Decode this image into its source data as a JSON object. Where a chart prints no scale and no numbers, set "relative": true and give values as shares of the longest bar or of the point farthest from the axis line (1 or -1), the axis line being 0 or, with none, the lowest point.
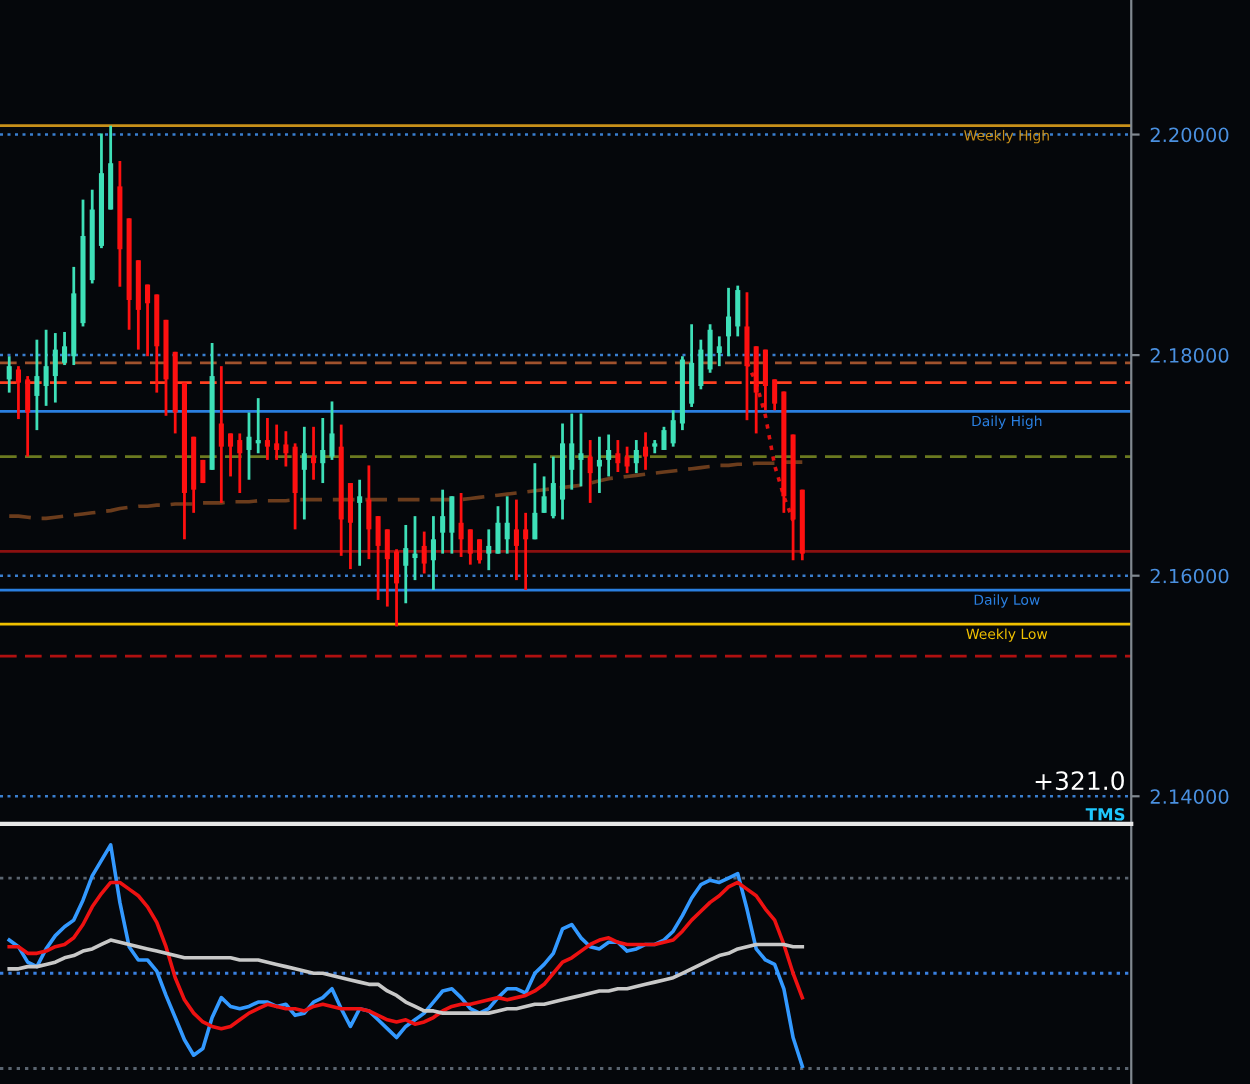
{
  "chart_data": [
    {
      "type": "candlestick",
      "categories": [
        null,
        null,
        null,
        null,
        null,
        null,
        null,
        null,
        null,
        null,
        null,
        null,
        null,
        null,
        null,
        null,
        null,
        null,
        null,
        null,
        null,
        null,
        null,
        null,
        null,
        null,
        null,
        null,
        null,
        null,
        null,
        null,
        null,
        null,
        null,
        null,
        null,
        null,
        null,
        null,
        null,
        null,
        null,
        null,
        null,
        null,
        null,
        null,
        null,
        null,
        null,
        null,
        null,
        null,
        null,
        null,
        null,
        null,
        null,
        null,
        null,
        null,
        null,
        null,
        null,
        null,
        null,
        null,
        null,
        null,
        null,
        null,
        null,
        null,
        null,
        null,
        null,
        null,
        null,
        null,
        null,
        null,
        null,
        null,
        null,
        null,
        null
      ],
      "ohlc": [
        [
          2.1778,
          2.1799,
          2.1766,
          2.179
        ],
        [
          2.1787,
          2.179,
          2.1742,
          2.1775
        ],
        [
          2.1778,
          2.1781,
          2.1708,
          2.1748
        ],
        [
          2.1763,
          2.1814,
          2.1732,
          2.1781
        ],
        [
          2.1772,
          2.1823,
          2.1754,
          2.179
        ],
        [
          2.1781,
          2.182,
          2.1757,
          2.1805
        ],
        [
          2.1793,
          2.1821,
          2.1791,
          2.1808
        ],
        [
          2.1799,
          2.188,
          2.1791,
          2.1856
        ],
        [
          2.1829,
          2.1941,
          2.1826,
          2.1908
        ],
        [
          2.1868,
          2.195,
          2.1865,
          2.1932
        ],
        [
          2.1899,
          2.2001,
          2.1897,
          2.1965
        ],
        [
          2.1932,
          2.2008,
          2.1932,
          2.1974
        ],
        [
          2.1953,
          2.1976,
          2.1862,
          2.1896
        ],
        [
          2.1924,
          2.1924,
          2.1823,
          2.185
        ],
        [
          2.1886,
          2.1886,
          2.1805,
          2.1841
        ],
        [
          2.1864,
          2.1864,
          2.1799,
          2.1847
        ],
        [
          2.1855,
          2.1855,
          2.1766,
          2.1808
        ],
        [
          2.1832,
          2.1832,
          2.1745,
          2.1778
        ],
        [
          2.1803,
          2.1803,
          2.1729,
          2.1748
        ],
        [
          2.1775,
          2.1775,
          2.1633,
          2.1675
        ],
        [
          2.1726,
          2.1726,
          2.1657,
          2.1678
        ],
        [
          2.1705,
          2.1705,
          2.1684,
          2.1684
        ],
        [
          2.1696,
          2.1811,
          2.1696,
          2.1781
        ],
        [
          2.1738,
          2.179,
          2.1666,
          2.1717
        ],
        [
          2.1729,
          2.1729,
          2.169,
          2.1717
        ],
        [
          2.1723,
          2.1729,
          2.1675,
          2.1711
        ],
        [
          2.1714,
          2.1748,
          2.1687,
          2.1726
        ],
        [
          2.172,
          2.1761,
          2.1711,
          2.1723
        ],
        [
          2.1723,
          2.1743,
          2.1705,
          2.1717
        ],
        [
          2.172,
          2.1737,
          2.1705,
          2.1714
        ],
        [
          2.1719,
          2.1731,
          2.1699,
          2.1711
        ],
        [
          2.1717,
          2.172,
          2.1642,
          2.1675
        ],
        [
          2.1696,
          2.1735,
          2.1651,
          2.1711
        ],
        [
          2.1708,
          2.1735,
          2.1687,
          2.1702
        ],
        [
          2.1702,
          2.1743,
          2.1684,
          2.1714
        ],
        [
          2.1708,
          2.1758,
          2.1705,
          2.1729
        ],
        [
          2.1717,
          2.1737,
          2.1618,
          2.1651
        ],
        [
          2.1684,
          2.1684,
          2.1606,
          2.1648
        ],
        [
          2.1666,
          2.1687,
          2.1609,
          2.1672
        ],
        [
          2.1669,
          2.17,
          2.1615,
          2.1642
        ],
        [
          2.1654,
          2.1654,
          2.1578,
          2.1627
        ],
        [
          2.1642,
          2.1642,
          2.1572,
          2.1615
        ],
        [
          2.1622,
          2.1624,
          2.1554,
          2.1593
        ],
        [
          2.1609,
          2.1646,
          2.1575,
          2.1625
        ],
        [
          2.1616,
          2.1654,
          2.1596,
          2.162
        ],
        [
          2.1627,
          2.164,
          2.1602,
          2.1611
        ],
        [
          2.1614,
          2.1654,
          2.1587,
          2.1633
        ],
        [
          2.1639,
          2.1678,
          2.162,
          2.1654
        ],
        [
          2.1639,
          2.1672,
          2.162,
          2.1672
        ],
        [
          2.1648,
          2.1675,
          2.1617,
          2.1633
        ],
        [
          2.1642,
          2.1642,
          2.161,
          2.162
        ],
        [
          2.1633,
          2.1633,
          2.1611,
          2.1614
        ],
        [
          2.162,
          2.1642,
          2.1605,
          2.1627
        ],
        [
          2.162,
          2.1663,
          2.162,
          2.1648
        ],
        [
          2.1633,
          2.1672,
          2.162,
          2.1648
        ],
        [
          2.1642,
          2.1669,
          2.1596,
          2.1627
        ],
        [
          2.1642,
          2.1657,
          2.1587,
          2.1633
        ],
        [
          2.1633,
          2.1702,
          2.1633,
          2.1657
        ],
        [
          2.1657,
          2.169,
          2.1657,
          2.1672
        ],
        [
          2.1654,
          2.1708,
          2.1652,
          2.1684
        ],
        [
          2.1669,
          2.1738,
          2.1651,
          2.172
        ],
        [
          2.1696,
          2.1747,
          2.1678,
          2.172
        ],
        [
          2.1705,
          2.1747,
          2.1681,
          2.1711
        ],
        [
          2.1708,
          2.1723,
          2.1666,
          2.1693
        ],
        [
          2.1699,
          2.1726,
          2.1675,
          2.1705
        ],
        [
          2.1705,
          2.1728,
          2.169,
          2.1714
        ],
        [
          2.1711,
          2.1723,
          2.1694,
          2.1702
        ],
        [
          2.1708,
          2.1717,
          2.1693,
          2.1699
        ],
        [
          2.1702,
          2.1723,
          2.1693,
          2.1714
        ],
        [
          2.1717,
          2.173,
          2.1696,
          2.1708
        ],
        [
          2.1717,
          2.1723,
          2.1711,
          2.172
        ],
        [
          2.1714,
          2.1735,
          2.1714,
          2.1732
        ],
        [
          2.172,
          2.175,
          2.1717,
          2.1741
        ],
        [
          2.1738,
          2.1799,
          2.1732,
          2.1796
        ],
        [
          2.1756,
          2.1828,
          2.1753,
          2.1793
        ],
        [
          2.1772,
          2.1814,
          2.1769,
          2.1805
        ],
        [
          2.1787,
          2.1828,
          2.1784,
          2.1823
        ],
        [
          2.1802,
          2.1817,
          2.179,
          2.1808
        ],
        [
          2.1817,
          2.1861,
          2.1799,
          2.1835
        ],
        [
          2.1826,
          2.1863,
          2.1817,
          2.1859
        ],
        [
          2.1826,
          2.1857,
          2.1741,
          2.179
        ],
        [
          2.1808,
          2.1808,
          2.1729,
          2.1766
        ],
        [
          2.1805,
          2.1805,
          2.175,
          2.1772
        ],
        [
          2.1778,
          2.1778,
          2.175,
          2.1756
        ],
        [
          2.1767,
          2.1767,
          2.1657,
          2.1672
        ],
        [
          2.1728,
          2.1728,
          2.1614,
          2.1651
        ],
        [
          2.1678,
          2.1678,
          2.1614,
          2.162
        ]
      ],
      "series": [
        {
          "type": "line",
          "color": "#6b3c1c",
          "line_style": "dashed",
          "values": [
            2.1654,
            2.1654,
            2.1653,
            2.1652,
            2.1652,
            2.1653,
            2.1654,
            2.1655,
            2.1656,
            2.1657,
            2.1658,
            2.1659,
            2.1661,
            2.1662,
            2.1663,
            2.1663,
            2.1664,
            2.1664,
            2.1665,
            2.1665,
            2.1665,
            2.1666,
            2.1666,
            2.1666,
            2.1667,
            2.1667,
            2.1667,
            2.1668,
            2.1668,
            2.1668,
            2.1668,
            2.1669,
            2.1669,
            2.1669,
            2.1669,
            2.1669,
            2.1669,
            2.1669,
            2.1669,
            2.1669,
            2.1669,
            2.1669,
            2.1669,
            2.1669,
            2.1669,
            2.1669,
            2.1669,
            2.1669,
            2.1669,
            2.1669,
            2.167,
            2.1671,
            2.1672,
            2.1673,
            2.1674,
            2.1675,
            2.1676,
            2.1677,
            2.1678,
            2.1679,
            2.168,
            2.1681,
            2.1682,
            2.1684,
            2.1686,
            2.1688,
            2.1689,
            2.169,
            2.1691,
            2.1692,
            2.1693,
            2.1694,
            2.1695,
            2.1696,
            2.1697,
            2.1698,
            2.1699,
            2.17,
            2.17,
            2.1701,
            2.1701,
            2.1702,
            2.1702,
            2.1702,
            2.1703,
            2.1703,
            2.1703
          ]
        },
        {
          "type": "line",
          "color": "#e01010",
          "line_style": "dotted",
          "values": [
            null,
            null,
            null,
            null,
            null,
            null,
            null,
            null,
            null,
            null,
            null,
            null,
            null,
            null,
            null,
            null,
            null,
            null,
            null,
            null,
            null,
            null,
            null,
            null,
            null,
            null,
            null,
            null,
            null,
            null,
            null,
            null,
            null,
            null,
            null,
            null,
            null,
            null,
            null,
            null,
            null,
            null,
            null,
            null,
            null,
            null,
            null,
            null,
            null,
            null,
            null,
            null,
            null,
            null,
            null,
            null,
            null,
            null,
            null,
            null,
            null,
            null,
            null,
            null,
            null,
            null,
            null,
            null,
            null,
            null,
            null,
            null,
            null,
            null,
            null,
            null,
            null,
            null,
            null,
            null,
            2.1793,
            2.1775,
            2.1745,
            2.17,
            2.1672,
            2.165,
            null
          ]
        }
      ],
      "ref_lines": [
        {
          "axis": "y",
          "value": 2.2008,
          "label": "Weekly High",
          "color": "#c8901a",
          "line_style": "solid"
        },
        {
          "axis": "y",
          "value": 2.1793,
          "color": "#a0522d",
          "line_style": "dashed"
        },
        {
          "axis": "y",
          "value": 2.1775,
          "color": "#ff4020",
          "line_style": "dashed"
        },
        {
          "axis": "y",
          "value": 2.1749,
          "label": "Daily High",
          "color": "#2a7fe0",
          "line_style": "solid"
        },
        {
          "axis": "y",
          "value": 2.1708,
          "color": "#6b7a20",
          "line_style": "dashed"
        },
        {
          "axis": "y",
          "value": 2.1622,
          "color": "#8b1010",
          "line_style": "solid"
        },
        {
          "axis": "y",
          "value": 2.1587,
          "label": "Daily Low",
          "color": "#2a7fe0",
          "line_style": "solid"
        },
        {
          "axis": "y",
          "value": 2.1556,
          "label": "Weekly Low",
          "color": "#f0c000",
          "line_style": "solid"
        },
        {
          "axis": "y",
          "value": 2.1527,
          "color": "#b01010",
          "line_style": "dashed"
        }
      ],
      "ylim": [
        2.1375,
        2.2122
      ],
      "yticks": [
        {
          "value": 2.14,
          "label": "2.14000"
        },
        {
          "value": 2.16,
          "label": "2.16000"
        },
        {
          "value": 2.18,
          "label": "2.18000"
        },
        {
          "value": 2.2,
          "label": "2.20000"
        }
      ],
      "grid": "y",
      "tick_labels": "y",
      "annotations": [
        "+321.0",
        "TMS"
      ]
    },
    {
      "type": "line",
      "relative": true,
      "tick_labels": false,
      "categories": [
        null,
        null,
        null,
        null,
        null,
        null,
        null,
        null,
        null,
        null,
        null,
        null,
        null,
        null,
        null,
        null,
        null,
        null,
        null,
        null,
        null,
        null,
        null,
        null,
        null,
        null,
        null,
        null,
        null,
        null,
        null,
        null,
        null,
        null,
        null,
        null,
        null,
        null,
        null,
        null,
        null,
        null,
        null,
        null,
        null,
        null,
        null,
        null,
        null,
        null,
        null,
        null,
        null,
        null,
        null,
        null,
        null,
        null,
        null,
        null,
        null,
        null,
        null,
        null,
        null,
        null,
        null,
        null,
        null,
        null,
        null,
        null,
        null,
        null,
        null,
        null,
        null,
        null,
        null,
        null,
        null,
        null,
        null,
        null,
        null,
        null,
        null
      ],
      "series": [
        {
          "color": "#3399ff",
          "values": [
            0.57,
            0.54,
            0.47,
            0.45,
            0.53,
            0.59,
            0.63,
            0.66,
            0.75,
            0.86,
            0.93,
            1.0,
            0.74,
            0.54,
            0.48,
            0.48,
            0.43,
            0.32,
            0.22,
            0.12,
            0.05,
            0.08,
            0.22,
            0.31,
            0.27,
            0.26,
            0.27,
            0.29,
            0.29,
            0.27,
            0.28,
            0.23,
            0.24,
            0.29,
            0.31,
            0.35,
            0.26,
            0.18,
            0.26,
            0.25,
            0.21,
            0.17,
            0.13,
            0.18,
            0.21,
            0.24,
            0.29,
            0.34,
            0.35,
            0.31,
            0.26,
            0.24,
            0.26,
            0.31,
            0.35,
            0.35,
            0.33,
            0.42,
            0.46,
            0.51,
            0.62,
            0.64,
            0.58,
            0.54,
            0.53,
            0.56,
            0.56,
            0.52,
            0.53,
            0.55,
            0.55,
            0.57,
            0.61,
            0.68,
            0.76,
            0.82,
            0.84,
            0.83,
            0.85,
            0.87,
            0.71,
            0.53,
            0.48,
            0.46,
            0.35,
            0.13,
            0.0
          ]
        },
        {
          "color": "#ee1111",
          "values": [
            0.54,
            0.54,
            0.51,
            0.51,
            0.52,
            0.54,
            0.55,
            0.58,
            0.64,
            0.72,
            0.78,
            0.83,
            0.83,
            0.8,
            0.77,
            0.72,
            0.65,
            0.54,
            0.4,
            0.3,
            0.24,
            0.2,
            0.18,
            0.17,
            0.18,
            0.21,
            0.24,
            0.26,
            0.28,
            0.27,
            0.26,
            0.26,
            0.25,
            0.27,
            0.28,
            0.27,
            0.26,
            0.26,
            0.26,
            0.25,
            0.23,
            0.21,
            0.2,
            0.21,
            0.19,
            0.2,
            0.22,
            0.25,
            0.27,
            0.28,
            0.28,
            0.29,
            0.3,
            0.31,
            0.3,
            0.31,
            0.32,
            0.34,
            0.37,
            0.42,
            0.47,
            0.49,
            0.52,
            0.55,
            0.57,
            0.58,
            0.56,
            0.55,
            0.55,
            0.55,
            0.55,
            0.56,
            0.57,
            0.61,
            0.66,
            0.7,
            0.74,
            0.77,
            0.81,
            0.83,
            0.8,
            0.77,
            0.71,
            0.66,
            0.55,
            0.42,
            0.31
          ]
        },
        {
          "color": "#c8c8c8",
          "values": [
            0.44,
            0.44,
            0.45,
            0.45,
            0.46,
            0.47,
            0.49,
            0.5,
            0.52,
            0.53,
            0.55,
            0.57,
            0.56,
            0.55,
            0.54,
            0.53,
            0.52,
            0.51,
            0.5,
            0.49,
            0.49,
            0.49,
            0.49,
            0.49,
            0.49,
            0.48,
            0.48,
            0.48,
            0.47,
            0.46,
            0.45,
            0.44,
            0.43,
            0.42,
            0.42,
            0.41,
            0.4,
            0.39,
            0.38,
            0.37,
            0.37,
            0.34,
            0.32,
            0.29,
            0.27,
            0.25,
            0.25,
            0.24,
            0.24,
            0.24,
            0.24,
            0.24,
            0.24,
            0.25,
            0.26,
            0.26,
            0.27,
            0.28,
            0.28,
            0.29,
            0.3,
            0.31,
            0.32,
            0.33,
            0.34,
            0.34,
            0.35,
            0.35,
            0.36,
            0.37,
            0.38,
            0.39,
            0.4,
            0.42,
            0.44,
            0.46,
            0.48,
            0.5,
            0.51,
            0.53,
            0.54,
            0.55,
            0.55,
            0.55,
            0.55,
            0.54,
            0.54
          ]
        }
      ],
      "ref_lines": [
        {
          "axis": "y",
          "value": 0.85,
          "color": "#5a6470",
          "line_style": "dotted"
        },
        {
          "axis": "y",
          "value": 0.42,
          "color": "#3a80e0",
          "line_style": "dotted"
        },
        {
          "axis": "y",
          "value": -0.01,
          "color": "#5a6470",
          "line_style": "dotted"
        }
      ]
    }
  ]
}
